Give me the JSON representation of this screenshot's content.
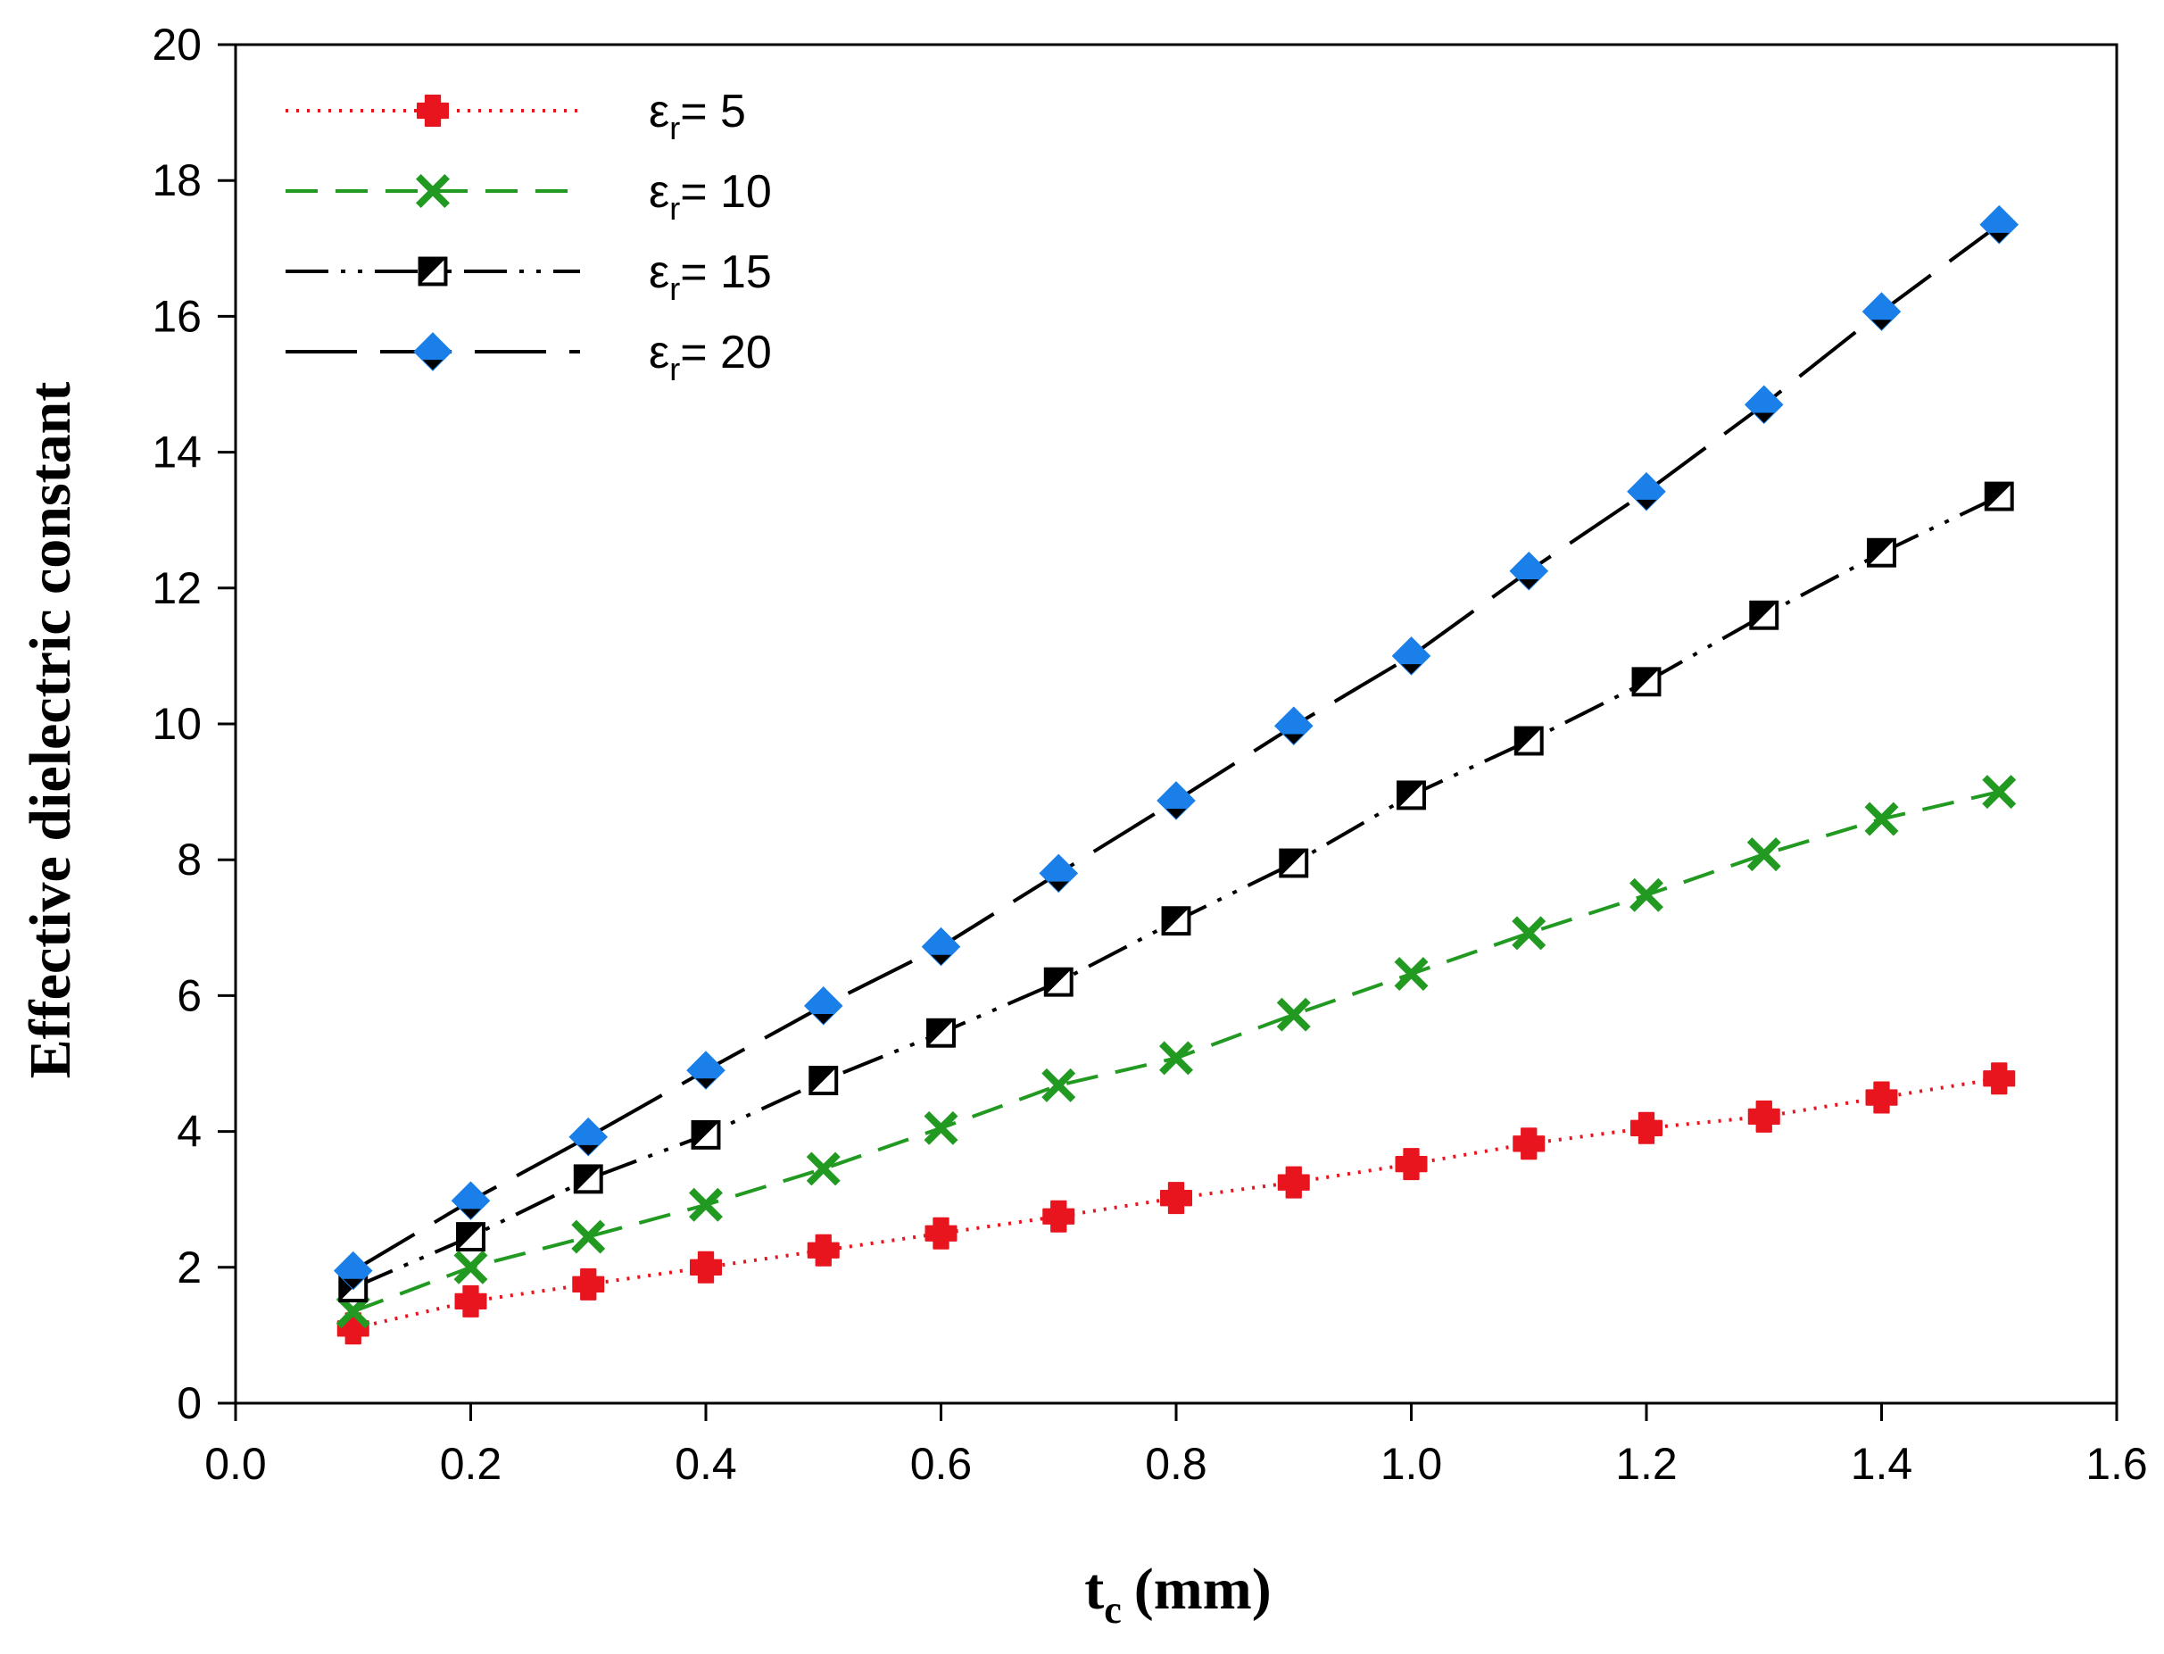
{
  "chart_data": {
    "type": "line",
    "title": "",
    "xlabel": {
      "main": "t",
      "sub": "c",
      "unit": "(mm)"
    },
    "ylabel": "Effective dielectric constant",
    "xlim": [
      0.0,
      1.6
    ],
    "ylim": [
      0,
      20
    ],
    "x_ticks": [
      "0.0",
      "0.2",
      "0.4",
      "0.6",
      "0.8",
      "1.0",
      "1.2",
      "1.4",
      "1.6"
    ],
    "y_ticks": [
      "0",
      "2",
      "4",
      "6",
      "8",
      "10",
      "12",
      "14",
      "16",
      "18",
      "20"
    ],
    "grid": false,
    "legend_position": "top-left",
    "x": [
      0.1,
      0.2,
      0.3,
      0.4,
      0.5,
      0.6,
      0.7,
      0.8,
      0.9,
      1.0,
      1.1,
      1.2,
      1.3,
      1.4,
      1.5
    ],
    "series": [
      {
        "name": "εr= 5",
        "label_symbol": "ε",
        "label_sub": "r",
        "label_value": "= 5",
        "color": "#e8141e",
        "line_style": "dotted",
        "marker": "plus-filled",
        "values": [
          1.1,
          1.5,
          1.75,
          2.0,
          2.25,
          2.5,
          2.75,
          3.02,
          3.25,
          3.52,
          3.82,
          4.05,
          4.22,
          4.5,
          4.78
        ]
      },
      {
        "name": "εr= 10",
        "label_symbol": "ε",
        "label_sub": "r",
        "label_value": "= 10",
        "color": "#229a22",
        "line_style": "dashed",
        "marker": "x",
        "values": [
          1.35,
          2.0,
          2.45,
          2.92,
          3.45,
          4.05,
          4.68,
          5.08,
          5.72,
          6.32,
          6.92,
          7.48,
          8.08,
          8.6,
          9.0
        ]
      },
      {
        "name": "εr= 15",
        "label_symbol": "ε",
        "label_sub": "r",
        "label_value": "= 15",
        "color": "#000000",
        "line_style": "dash-dot-dot",
        "marker": "square-half",
        "values": [
          1.7,
          2.45,
          3.3,
          3.95,
          4.75,
          5.45,
          6.2,
          7.1,
          7.95,
          8.95,
          9.75,
          10.62,
          11.6,
          12.52,
          13.35
        ]
      },
      {
        "name": "εr= 20",
        "label_symbol": "ε",
        "label_sub": "r",
        "label_value": "= 20",
        "color": "#000000",
        "marker_color": "#1a7fe8",
        "line_style": "long-dash",
        "marker": "diamond-half",
        "values": [
          1.95,
          2.98,
          3.92,
          4.9,
          5.85,
          6.72,
          7.8,
          8.87,
          9.97,
          11.0,
          12.25,
          13.42,
          14.7,
          16.07,
          17.35
        ]
      }
    ]
  }
}
